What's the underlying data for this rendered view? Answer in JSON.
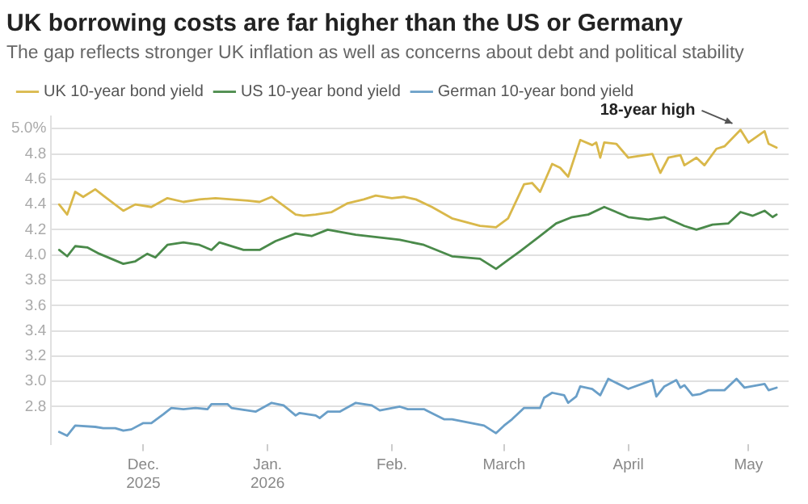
{
  "chart_data": {
    "type": "line",
    "title": "UK borrowing costs are far higher than the US or Germany",
    "subtitle": "The gap reflects stronger UK inflation as well as concerns about debt and political stability",
    "xlim": [
      "2025-11-08",
      "2026-05-11"
    ],
    "xticks": [
      {
        "value": "2025-12-01",
        "label": "Dec.\n2025"
      },
      {
        "value": "2026-01-01",
        "label": "Jan.\n2026"
      },
      {
        "value": "2026-02-01",
        "label": "Feb."
      },
      {
        "value": "2026-03-01",
        "label": "March"
      },
      {
        "value": "2026-04-01",
        "label": "April"
      },
      {
        "value": "2026-05-01",
        "label": "May"
      }
    ],
    "ylim": [
      2.5,
      5.1
    ],
    "yticks": [
      2.8,
      {
        "value": 3,
        "label": "3.0"
      },
      3.2,
      3.4,
      3.6,
      3.8,
      {
        "value": 4,
        "label": "4.0"
      },
      4.2,
      4.4,
      4.6,
      4.8,
      {
        "value": 5,
        "label": "5.0%"
      }
    ],
    "grid": "y",
    "legend": "top left",
    "marker": "none",
    "line_style": "solid",
    "annotations": [
      {
        "text": "18-year high",
        "x": "2026-04-29",
        "y": 4.99
      }
    ],
    "series": [
      {
        "name": "UK 10-year bond yield",
        "color": "#d9b84a",
        "x": [
          "2025-11-10",
          "2025-11-12",
          "2025-11-14",
          "2025-11-16",
          "2025-11-19",
          "2025-11-21",
          "2025-11-26",
          "2025-11-29",
          "2025-12-03",
          "2025-12-07",
          "2025-12-11",
          "2025-12-15",
          "2025-12-19",
          "2025-12-27",
          "2025-12-30",
          "2026-01-02",
          "2026-01-08",
          "2026-01-10",
          "2026-01-13",
          "2026-01-17",
          "2026-01-21",
          "2026-01-25",
          "2026-01-28",
          "2026-02-01",
          "2026-02-04",
          "2026-02-07",
          "2026-02-11",
          "2026-02-16",
          "2026-02-23",
          "2026-02-27",
          "2026-03-02",
          "2026-03-06",
          "2026-03-08",
          "2026-03-10",
          "2026-03-13",
          "2026-03-15",
          "2026-03-17",
          "2026-03-20",
          "2026-03-23",
          "2026-03-24",
          "2026-03-25",
          "2026-03-26",
          "2026-03-29",
          "2026-04-01",
          "2026-04-05",
          "2026-04-07",
          "2026-04-09",
          "2026-04-11",
          "2026-04-14",
          "2026-04-15",
          "2026-04-18",
          "2026-04-20",
          "2026-04-23",
          "2026-04-25",
          "2026-04-29",
          "2026-05-01",
          "2026-05-05",
          "2026-05-06",
          "2026-05-08"
        ],
        "values": [
          4.4,
          4.32,
          4.5,
          4.46,
          4.52,
          4.47,
          4.35,
          4.4,
          4.38,
          4.45,
          4.42,
          4.44,
          4.45,
          4.43,
          4.42,
          4.46,
          4.32,
          4.31,
          4.32,
          4.34,
          4.41,
          4.44,
          4.47,
          4.45,
          4.46,
          4.44,
          4.38,
          4.29,
          4.23,
          4.22,
          4.29,
          4.56,
          4.57,
          4.5,
          4.72,
          4.69,
          4.62,
          4.91,
          4.87,
          4.89,
          4.77,
          4.89,
          4.88,
          4.77,
          4.79,
          4.8,
          4.65,
          4.77,
          4.79,
          4.71,
          4.77,
          4.71,
          4.84,
          4.86,
          4.99,
          4.89,
          4.98,
          4.88,
          4.85
        ]
      },
      {
        "name": "US 10-year bond yield",
        "color": "#4a8a4a",
        "x": [
          "2025-11-10",
          "2025-11-12",
          "2025-11-14",
          "2025-11-17",
          "2025-11-20",
          "2025-11-26",
          "2025-11-29",
          "2025-12-02",
          "2025-12-04",
          "2025-12-07",
          "2025-12-11",
          "2025-12-15",
          "2025-12-18",
          "2025-12-20",
          "2025-12-26",
          "2025-12-30",
          "2026-01-03",
          "2026-01-08",
          "2026-01-12",
          "2026-01-16",
          "2026-01-23",
          "2026-02-03",
          "2026-02-09",
          "2026-02-16",
          "2026-02-23",
          "2026-02-27",
          "2026-03-02",
          "2026-03-05",
          "2026-03-10",
          "2026-03-14",
          "2026-03-18",
          "2026-03-22",
          "2026-03-26",
          "2026-04-01",
          "2026-04-06",
          "2026-04-10",
          "2026-04-15",
          "2026-04-18",
          "2026-04-22",
          "2026-04-26",
          "2026-04-29",
          "2026-05-02",
          "2026-05-05",
          "2026-05-07",
          "2026-05-08"
        ],
        "values": [
          4.04,
          3.99,
          4.07,
          4.06,
          4.01,
          3.93,
          3.95,
          4.01,
          3.98,
          4.08,
          4.1,
          4.08,
          4.04,
          4.1,
          4.04,
          4.04,
          4.11,
          4.17,
          4.15,
          4.2,
          4.16,
          4.12,
          4.08,
          3.99,
          3.97,
          3.89,
          3.96,
          4.03,
          4.15,
          4.25,
          4.3,
          4.32,
          4.38,
          4.3,
          4.28,
          4.3,
          4.23,
          4.2,
          4.24,
          4.25,
          4.34,
          4.31,
          4.35,
          4.3,
          4.32
        ]
      },
      {
        "name": "German 10-year bond yield",
        "color": "#6a9fc8",
        "x": [
          "2025-11-10",
          "2025-11-12",
          "2025-11-14",
          "2025-11-19",
          "2025-11-21",
          "2025-11-24",
          "2025-11-26",
          "2025-11-28",
          "2025-12-01",
          "2025-12-03",
          "2025-12-06",
          "2025-12-08",
          "2025-12-11",
          "2025-12-14",
          "2025-12-17",
          "2025-12-18",
          "2025-12-22",
          "2025-12-23",
          "2025-12-29",
          "2026-01-02",
          "2026-01-05",
          "2026-01-08",
          "2026-01-09",
          "2026-01-13",
          "2026-01-14",
          "2026-01-16",
          "2026-01-19",
          "2026-01-23",
          "2026-01-27",
          "2026-01-29",
          "2026-02-03",
          "2026-02-05",
          "2026-02-09",
          "2026-02-14",
          "2026-02-16",
          "2026-02-24",
          "2026-02-27",
          "2026-03-01",
          "2026-03-03",
          "2026-03-06",
          "2026-03-10",
          "2026-03-11",
          "2026-03-13",
          "2026-03-16",
          "2026-03-17",
          "2026-03-19",
          "2026-03-20",
          "2026-03-23",
          "2026-03-25",
          "2026-03-27",
          "2026-04-01",
          "2026-04-07",
          "2026-04-08",
          "2026-04-10",
          "2026-04-13",
          "2026-04-14",
          "2026-04-15",
          "2026-04-17",
          "2026-04-19",
          "2026-04-21",
          "2026-04-25",
          "2026-04-28",
          "2026-04-30",
          "2026-05-05",
          "2026-05-06",
          "2026-05-08"
        ],
        "values": [
          2.6,
          2.57,
          2.65,
          2.64,
          2.63,
          2.63,
          2.61,
          2.62,
          2.67,
          2.67,
          2.74,
          2.79,
          2.78,
          2.79,
          2.78,
          2.82,
          2.82,
          2.79,
          2.76,
          2.83,
          2.81,
          2.73,
          2.75,
          2.73,
          2.71,
          2.76,
          2.76,
          2.83,
          2.81,
          2.77,
          2.8,
          2.78,
          2.78,
          2.7,
          2.7,
          2.65,
          2.59,
          2.65,
          2.7,
          2.79,
          2.79,
          2.87,
          2.91,
          2.89,
          2.83,
          2.88,
          2.96,
          2.94,
          2.89,
          3.02,
          2.94,
          3.01,
          2.88,
          2.96,
          3.01,
          2.95,
          2.97,
          2.89,
          2.9,
          2.93,
          2.93,
          3.02,
          2.95,
          2.98,
          2.93,
          2.95
        ]
      }
    ]
  }
}
